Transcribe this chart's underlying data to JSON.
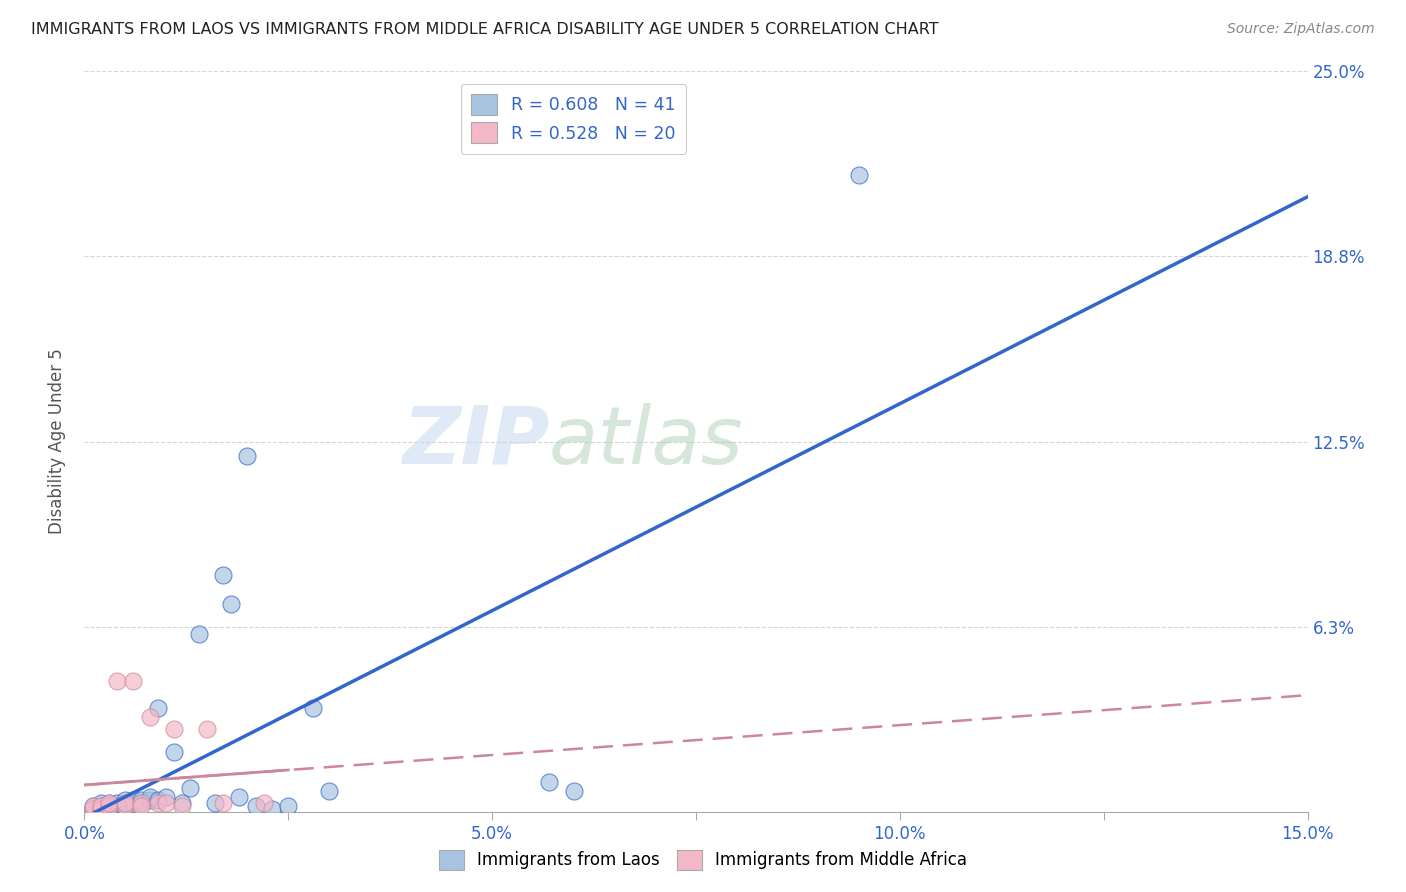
{
  "title": "IMMIGRANTS FROM LAOS VS IMMIGRANTS FROM MIDDLE AFRICA DISABILITY AGE UNDER 5 CORRELATION CHART",
  "source": "Source: ZipAtlas.com",
  "ylabel": "Disability Age Under 5",
  "xlim": [
    0.0,
    0.15
  ],
  "ylim": [
    0.0,
    0.25
  ],
  "xticks": [
    0.0,
    0.025,
    0.05,
    0.075,
    0.1,
    0.125,
    0.15
  ],
  "xticklabels": [
    "0.0%",
    "",
    "5.0%",
    "",
    "10.0%",
    "",
    "15.0%"
  ],
  "yticks": [
    0.0,
    0.0625,
    0.125,
    0.1875,
    0.25
  ],
  "yticklabels": [
    "",
    "6.3%",
    "12.5%",
    "18.8%",
    "25.0%"
  ],
  "legend_r1": "R = 0.608   N = 41",
  "legend_r2": "R = 0.528   N = 20",
  "color_laos": "#a8c4e0",
  "color_africa": "#f4b8c8",
  "color_laos_line": "#3366cc",
  "color_africa_line": "#cc8899",
  "watermark_zip": "ZIP",
  "watermark_atlas": "atlas",
  "laos_x": [
    0.001,
    0.001,
    0.001,
    0.002,
    0.002,
    0.002,
    0.002,
    0.003,
    0.003,
    0.003,
    0.004,
    0.004,
    0.005,
    0.005,
    0.005,
    0.006,
    0.006,
    0.007,
    0.007,
    0.008,
    0.008,
    0.009,
    0.009,
    0.01,
    0.011,
    0.012,
    0.013,
    0.014,
    0.016,
    0.017,
    0.018,
    0.019,
    0.02,
    0.021,
    0.023,
    0.025,
    0.028,
    0.03,
    0.057,
    0.06,
    0.095
  ],
  "laos_y": [
    0.001,
    0.002,
    0.001,
    0.001,
    0.002,
    0.001,
    0.003,
    0.001,
    0.002,
    0.003,
    0.002,
    0.003,
    0.002,
    0.003,
    0.004,
    0.003,
    0.004,
    0.003,
    0.004,
    0.004,
    0.005,
    0.004,
    0.035,
    0.005,
    0.02,
    0.003,
    0.008,
    0.06,
    0.003,
    0.08,
    0.07,
    0.005,
    0.12,
    0.002,
    0.001,
    0.002,
    0.035,
    0.007,
    0.01,
    0.007,
    0.215
  ],
  "africa_x": [
    0.001,
    0.001,
    0.002,
    0.002,
    0.003,
    0.003,
    0.004,
    0.005,
    0.005,
    0.006,
    0.007,
    0.007,
    0.008,
    0.009,
    0.01,
    0.011,
    0.012,
    0.015,
    0.017,
    0.022
  ],
  "africa_y": [
    0.001,
    0.002,
    0.001,
    0.002,
    0.002,
    0.003,
    0.044,
    0.002,
    0.003,
    0.044,
    0.003,
    0.002,
    0.032,
    0.003,
    0.003,
    0.028,
    0.002,
    0.028,
    0.003,
    0.003
  ]
}
